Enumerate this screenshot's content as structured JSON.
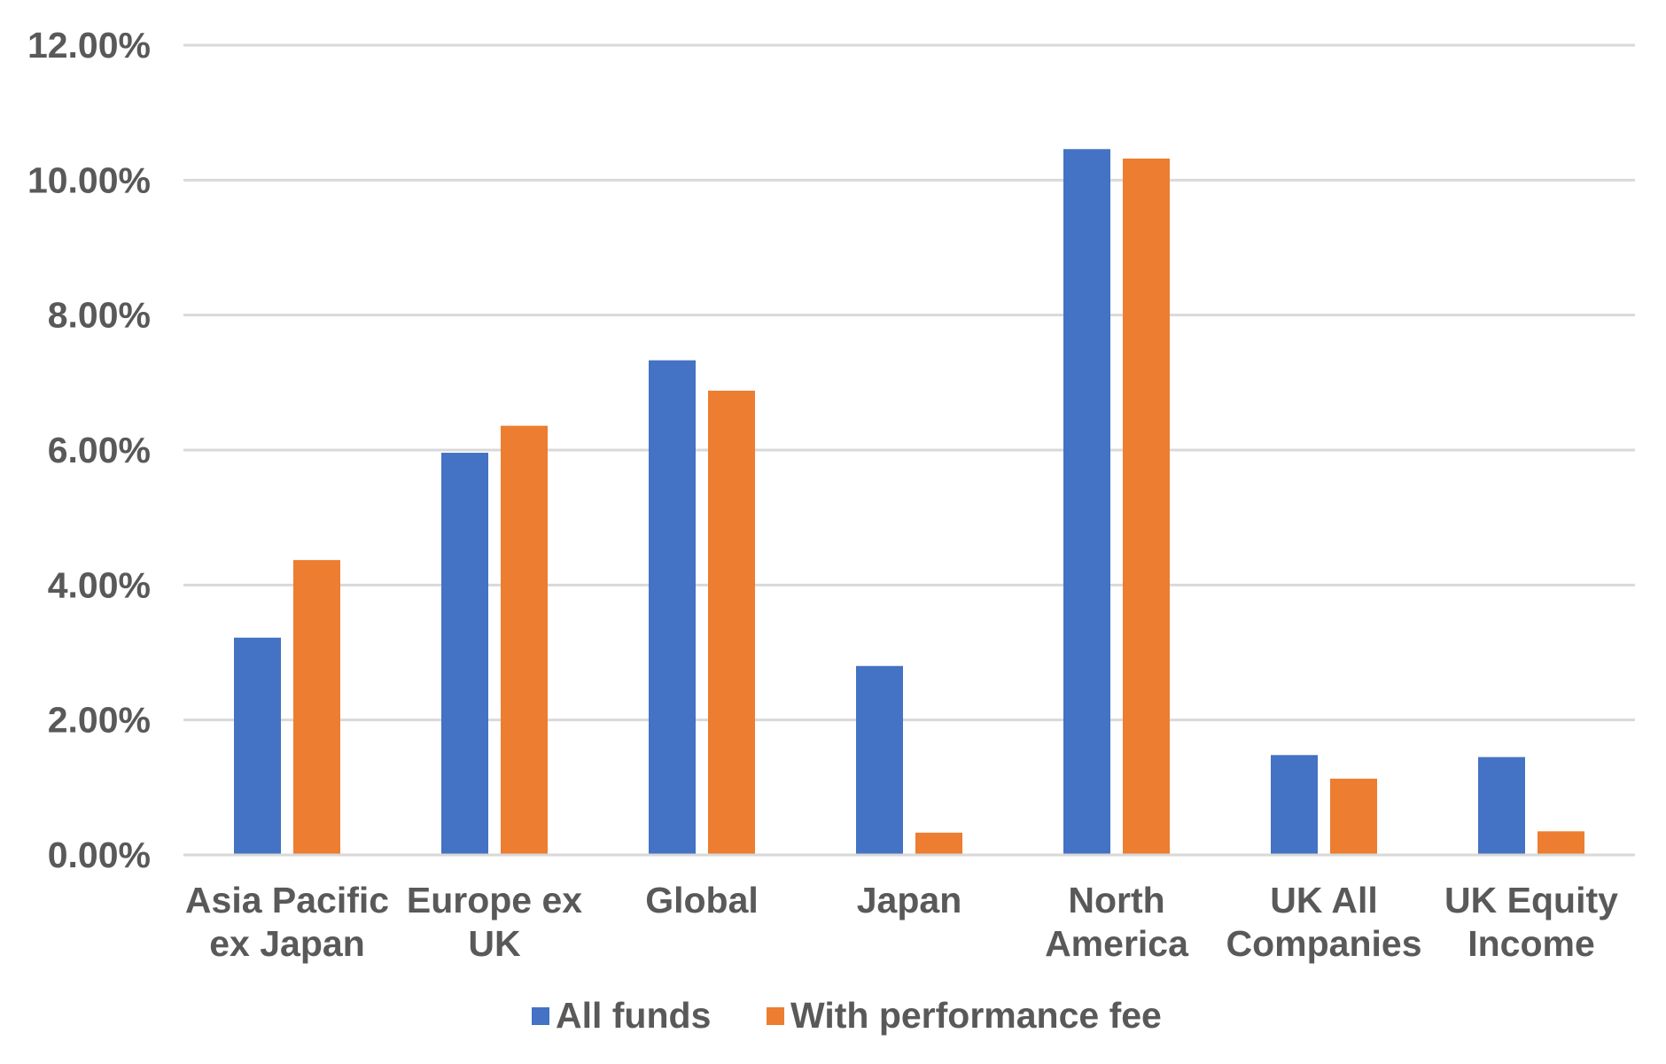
{
  "chart_data": {
    "type": "bar",
    "title": "",
    "xlabel": "",
    "ylabel": "",
    "ylim": [
      0,
      12
    ],
    "y_ticks": [
      0,
      2,
      4,
      6,
      8,
      10,
      12
    ],
    "y_tick_labels": [
      "0.00%",
      "2.00%",
      "4.00%",
      "6.00%",
      "8.00%",
      "10.00%",
      "12.00%"
    ],
    "grid": true,
    "legend_position": "bottom",
    "categories": [
      [
        "Asia Pacific",
        "ex Japan"
      ],
      [
        "Europe ex",
        "UK"
      ],
      [
        "Global"
      ],
      [
        "Japan"
      ],
      [
        "North",
        "America"
      ],
      [
        "UK All",
        "Companies"
      ],
      [
        "UK Equity",
        "Income"
      ]
    ],
    "series": [
      {
        "name": "All funds",
        "color": "#4472c4",
        "values": [
          3.22,
          5.96,
          7.33,
          2.8,
          10.46,
          1.48,
          1.45
        ]
      },
      {
        "name": "With performance fee",
        "color": "#ed7d31",
        "values": [
          4.37,
          6.36,
          6.88,
          0.33,
          10.32,
          1.13,
          0.35
        ]
      }
    ]
  }
}
